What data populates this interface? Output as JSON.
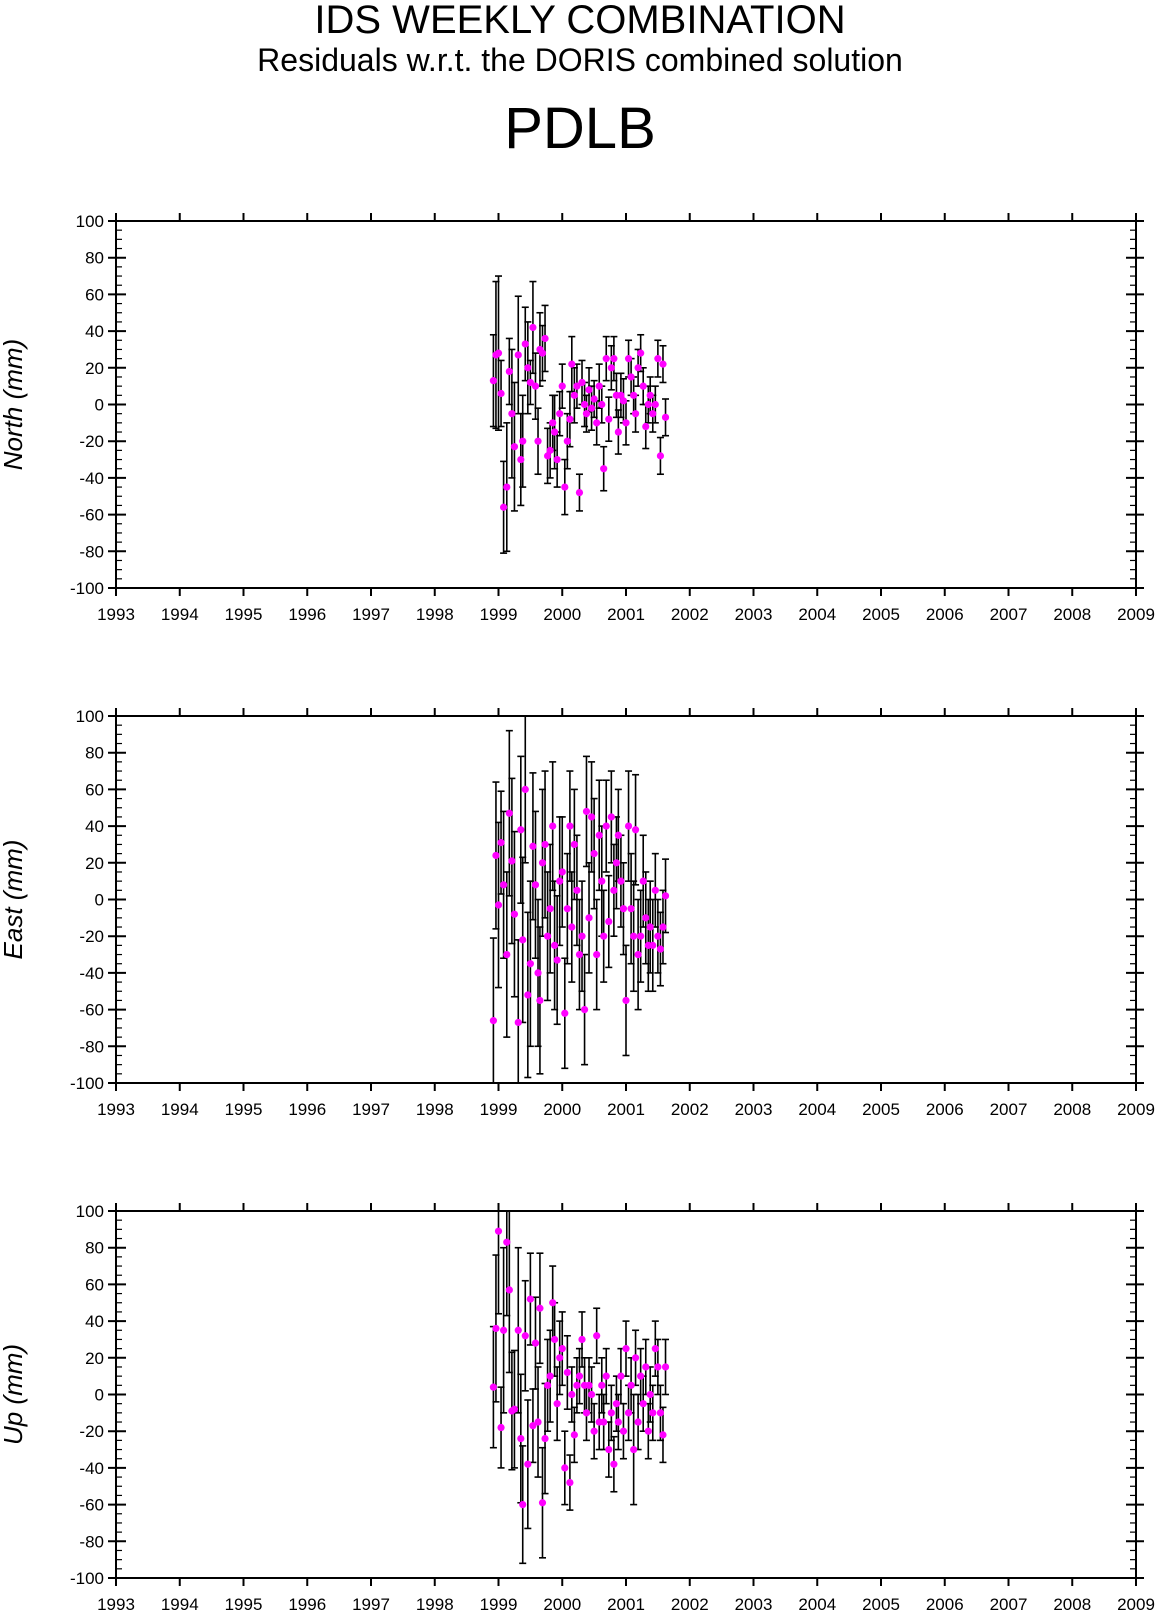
{
  "header": {
    "title": "IDS WEEKLY COMBINATION",
    "subtitle": "Residuals w.r.t. the DORIS combined solution",
    "station": "PDLB"
  },
  "colors": {
    "point": "#ff00ff",
    "errorbar": "#000000",
    "axis": "#000000"
  },
  "chart_data": [
    {
      "type": "scatter",
      "ylabel": "North (mm)",
      "xlim": [
        1993,
        2009
      ],
      "ylim": [
        -100,
        100
      ],
      "xticks": [
        "1993",
        "1994",
        "1995",
        "1996",
        "1997",
        "1998",
        "1999",
        "2000",
        "2001",
        "2002",
        "2003",
        "2004",
        "2005",
        "2006",
        "2007",
        "2008",
        "2009"
      ],
      "yticks": [
        "100",
        "80",
        "60",
        "40",
        "20",
        "0",
        "-20",
        "-40",
        "-60",
        "-80",
        "-100"
      ],
      "error_bars": true,
      "series": [
        {
          "x": [
            1998.92,
            1998.96,
            1999.0,
            1999.04,
            1999.08,
            1999.13,
            1999.17,
            1999.21,
            1999.25,
            1999.31,
            1999.35,
            1999.38,
            1999.42,
            1999.46,
            1999.5,
            1999.54,
            1999.58,
            1999.62,
            1999.65,
            1999.69,
            1999.73,
            1999.77,
            1999.81,
            1999.85,
            1999.88,
            1999.92,
            1999.96,
            2000.0,
            2000.04,
            2000.08,
            2000.12,
            2000.15,
            2000.19,
            2000.23,
            2000.27,
            2000.31,
            2000.35,
            2000.38,
            2000.42,
            2000.46,
            2000.5,
            2000.54,
            2000.58,
            2000.62,
            2000.65,
            2000.69,
            2000.73,
            2000.77,
            2000.81,
            2000.85,
            2000.88,
            2000.92,
            2000.96,
            2001.0,
            2001.04,
            2001.08,
            2001.12,
            2001.15,
            2001.19,
            2001.23,
            2001.27,
            2001.31,
            2001.35,
            2001.38,
            2001.42,
            2001.46,
            2001.5,
            2001.54,
            2001.58,
            2001.62
          ],
          "y": [
            13,
            27,
            28,
            6,
            -56,
            -45,
            18,
            -5,
            -23,
            27,
            -30,
            -20,
            33,
            20,
            12,
            42,
            10,
            -20,
            30,
            28,
            36,
            -28,
            -25,
            -10,
            -15,
            -30,
            -5,
            10,
            -45,
            -20,
            -8,
            22,
            5,
            10,
            -48,
            12,
            0,
            -5,
            8,
            -2,
            3,
            -10,
            10,
            0,
            -35,
            25,
            -8,
            20,
            25,
            5,
            -15,
            5,
            2,
            -10,
            25,
            15,
            5,
            -5,
            20,
            28,
            10,
            -12,
            0,
            5,
            -5,
            0,
            25,
            -28,
            22,
            -7
          ],
          "err": [
            25,
            40,
            42,
            18,
            25,
            35,
            18,
            35,
            35,
            32,
            25,
            25,
            20,
            25,
            12,
            25,
            18,
            18,
            20,
            15,
            18,
            15,
            15,
            15,
            20,
            15,
            12,
            12,
            15,
            15,
            15,
            15,
            15,
            12,
            10,
            12,
            12,
            10,
            12,
            12,
            10,
            12,
            12,
            10,
            12,
            12,
            12,
            12,
            12,
            12,
            12,
            12,
            12,
            12,
            10,
            10,
            10,
            10,
            10,
            10,
            10,
            12,
            10,
            10,
            10,
            10,
            10,
            10,
            10,
            10
          ]
        }
      ]
    },
    {
      "type": "scatter",
      "ylabel": "East (mm)",
      "xlim": [
        1993,
        2009
      ],
      "ylim": [
        -100,
        100
      ],
      "xticks": [
        "1993",
        "1994",
        "1995",
        "1996",
        "1997",
        "1998",
        "1999",
        "2000",
        "2001",
        "2002",
        "2003",
        "2004",
        "2005",
        "2006",
        "2007",
        "2008",
        "2009"
      ],
      "yticks": [
        "100",
        "80",
        "60",
        "40",
        "20",
        "0",
        "-20",
        "-40",
        "-60",
        "-80",
        "-100"
      ],
      "error_bars": true,
      "series": [
        {
          "x": [
            1998.92,
            1998.96,
            1999.0,
            1999.04,
            1999.08,
            1999.13,
            1999.17,
            1999.21,
            1999.25,
            1999.31,
            1999.35,
            1999.38,
            1999.42,
            1999.46,
            1999.5,
            1999.54,
            1999.58,
            1999.62,
            1999.65,
            1999.69,
            1999.73,
            1999.77,
            1999.81,
            1999.85,
            1999.88,
            1999.92,
            1999.96,
            2000.0,
            2000.04,
            2000.08,
            2000.12,
            2000.15,
            2000.19,
            2000.23,
            2000.27,
            2000.31,
            2000.35,
            2000.38,
            2000.42,
            2000.46,
            2000.5,
            2000.54,
            2000.58,
            2000.62,
            2000.65,
            2000.69,
            2000.73,
            2000.77,
            2000.81,
            2000.85,
            2000.88,
            2000.92,
            2000.96,
            2001.0,
            2001.04,
            2001.08,
            2001.12,
            2001.15,
            2001.19,
            2001.23,
            2001.27,
            2001.31,
            2001.35,
            2001.38,
            2001.42,
            2001.46,
            2001.5,
            2001.54,
            2001.58,
            2001.62
          ],
          "y": [
            -66,
            24,
            -3,
            31,
            8,
            -30,
            47,
            21,
            -8,
            -67,
            38,
            -22,
            60,
            -52,
            -35,
            29,
            8,
            -40,
            -55,
            20,
            30,
            -20,
            -5,
            40,
            -25,
            -33,
            10,
            15,
            -62,
            -5,
            40,
            -15,
            30,
            5,
            -30,
            -20,
            -60,
            48,
            -10,
            45,
            25,
            -30,
            35,
            10,
            -20,
            40,
            -12,
            45,
            5,
            20,
            35,
            10,
            -5,
            -55,
            40,
            -5,
            -20,
            38,
            -30,
            -20,
            10,
            -10,
            -25,
            -15,
            -25,
            5,
            -20,
            -27,
            -15,
            2
          ],
          "err": [
            45,
            40,
            45,
            28,
            40,
            45,
            45,
            45,
            45,
            45,
            40,
            45,
            40,
            45,
            45,
            40,
            40,
            40,
            40,
            40,
            40,
            35,
            35,
            35,
            35,
            35,
            35,
            30,
            30,
            30,
            30,
            30,
            30,
            30,
            30,
            30,
            30,
            30,
            30,
            30,
            30,
            30,
            30,
            30,
            25,
            25,
            25,
            25,
            25,
            25,
            25,
            25,
            25,
            30,
            30,
            30,
            30,
            30,
            30,
            25,
            25,
            25,
            25,
            25,
            25,
            20,
            20,
            20,
            20,
            20
          ]
        }
      ]
    },
    {
      "type": "scatter",
      "ylabel": "Up (mm)",
      "xlim": [
        1993,
        2009
      ],
      "ylim": [
        -100,
        100
      ],
      "xticks": [
        "1993",
        "1994",
        "1995",
        "1996",
        "1997",
        "1998",
        "1999",
        "2000",
        "2001",
        "2002",
        "2003",
        "2004",
        "2005",
        "2006",
        "2007",
        "2008",
        "2009"
      ],
      "yticks": [
        "100",
        "80",
        "60",
        "40",
        "20",
        "0",
        "-20",
        "-40",
        "-60",
        "-80",
        "-100"
      ],
      "error_bars": true,
      "series": [
        {
          "x": [
            1998.92,
            1998.96,
            1999.0,
            1999.04,
            1999.08,
            1999.13,
            1999.17,
            1999.21,
            1999.25,
            1999.31,
            1999.35,
            1999.38,
            1999.42,
            1999.46,
            1999.5,
            1999.54,
            1999.58,
            1999.62,
            1999.65,
            1999.69,
            1999.73,
            1999.77,
            1999.81,
            1999.85,
            1999.88,
            1999.92,
            1999.96,
            2000.0,
            2000.04,
            2000.08,
            2000.12,
            2000.15,
            2000.19,
            2000.23,
            2000.27,
            2000.31,
            2000.35,
            2000.38,
            2000.42,
            2000.46,
            2000.5,
            2000.54,
            2000.58,
            2000.62,
            2000.65,
            2000.69,
            2000.73,
            2000.77,
            2000.81,
            2000.85,
            2000.88,
            2000.92,
            2000.96,
            2001.0,
            2001.04,
            2001.08,
            2001.12,
            2001.15,
            2001.19,
            2001.23,
            2001.27,
            2001.31,
            2001.35,
            2001.38,
            2001.42,
            2001.46,
            2001.5,
            2001.54,
            2001.58,
            2001.62
          ],
          "y": [
            4,
            36,
            89,
            -18,
            35,
            83,
            57,
            -9,
            -8,
            35,
            -24,
            -60,
            32,
            -38,
            52,
            -17,
            28,
            -15,
            47,
            -59,
            -24,
            5,
            10,
            50,
            30,
            -5,
            20,
            25,
            -40,
            12,
            -48,
            0,
            -22,
            5,
            10,
            30,
            5,
            -10,
            5,
            0,
            -20,
            32,
            -15,
            5,
            -15,
            10,
            -30,
            -10,
            -38,
            -5,
            -15,
            10,
            -20,
            25,
            -10,
            5,
            -30,
            20,
            -15,
            10,
            -5,
            15,
            -20,
            0,
            -10,
            25,
            15,
            -10,
            -22,
            15
          ],
          "err": [
            33,
            40,
            45,
            22,
            45,
            40,
            45,
            32,
            32,
            45,
            35,
            32,
            30,
            35,
            25,
            20,
            25,
            30,
            30,
            30,
            30,
            25,
            25,
            20,
            20,
            20,
            20,
            20,
            20,
            20,
            15,
            15,
            15,
            15,
            15,
            15,
            15,
            15,
            15,
            15,
            15,
            15,
            15,
            15,
            15,
            15,
            15,
            15,
            15,
            15,
            15,
            15,
            15,
            15,
            15,
            15,
            30,
            15,
            15,
            15,
            15,
            15,
            15,
            15,
            15,
            15,
            15,
            15,
            15,
            15
          ]
        }
      ]
    }
  ]
}
